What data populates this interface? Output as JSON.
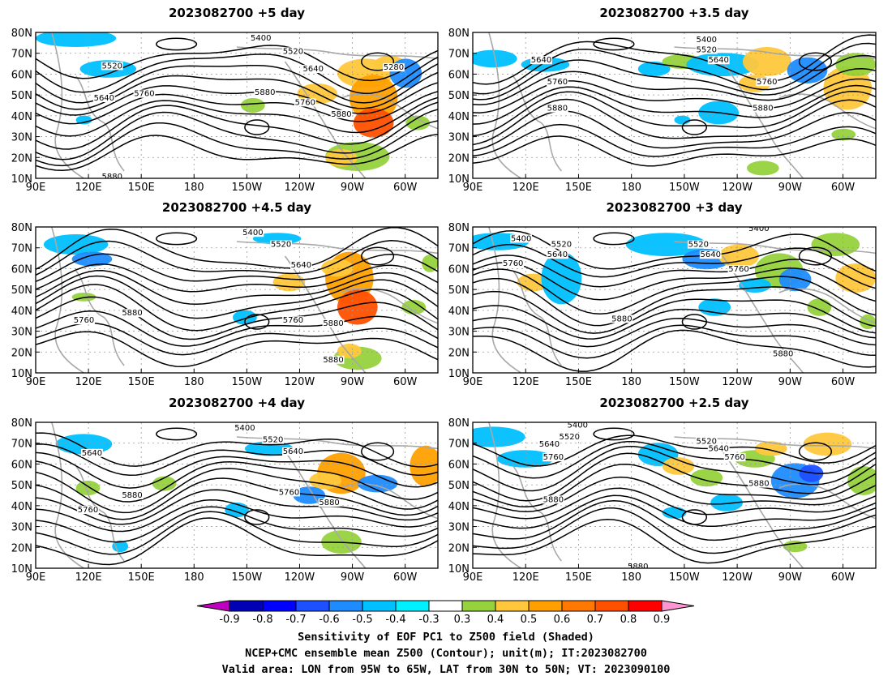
{
  "panels": [
    {
      "title": "2023082700  +5  day",
      "contour_labels": [
        "5400",
        "5520",
        "5520",
        "5640",
        "5640",
        "5760",
        "5760",
        "5880",
        "5880",
        "5280",
        "5880"
      ]
    },
    {
      "title": "2023082700  +3.5  day",
      "contour_labels": [
        "5400",
        "5520",
        "5640",
        "5640",
        "5760",
        "5760",
        "5880",
        "5880"
      ]
    },
    {
      "title": "2023082700  +4.5  day",
      "contour_labels": [
        "5400",
        "5520",
        "5640",
        "5760",
        "5880",
        "5760",
        "5880",
        "5880"
      ]
    },
    {
      "title": "2023082700  +3  day",
      "contour_labels": [
        "5400",
        "5400",
        "5520",
        "5520",
        "5640",
        "5640",
        "5760",
        "5760",
        "5880",
        "5880"
      ]
    },
    {
      "title": "2023082700  +4  day",
      "contour_labels": [
        "5400",
        "5520",
        "5640",
        "5640",
        "5760",
        "5880",
        "5760",
        "5880"
      ]
    },
    {
      "title": "2023082700  +2.5  day",
      "contour_labels": [
        "5400",
        "5520",
        "5520",
        "5640",
        "5640",
        "5760",
        "5760",
        "5880",
        "5880",
        "5880"
      ]
    }
  ],
  "axes": {
    "x_ticks": [
      "90E",
      "120E",
      "150E",
      "180",
      "150W",
      "120W",
      "90W",
      "60W"
    ],
    "y_ticks": [
      "80N",
      "70N",
      "60N",
      "50N",
      "40N",
      "30N",
      "20N",
      "10N"
    ]
  },
  "colorbar": {
    "labels": [
      "-0.9",
      "-0.8",
      "-0.7",
      "-0.6",
      "-0.5",
      "-0.4",
      "-0.3",
      "0.3",
      "0.4",
      "0.5",
      "0.6",
      "0.7",
      "0.8",
      "0.9"
    ],
    "colors": [
      "#c000c0",
      "#0000b4",
      "#0000ff",
      "#1e50ff",
      "#1e8cff",
      "#00c0ff",
      "#00f0ff",
      "#ffffff",
      "#96d23c",
      "#ffc83c",
      "#ffa000",
      "#ff7800",
      "#ff5000",
      "#ff0000",
      "#ff96d2"
    ]
  },
  "footer": {
    "line1": "Sensitivity of EOF PC1 to Z500 field (Shaded)",
    "line2": "NCEP+CMC ensemble mean Z500 (Contour); unit(m); IT:2023082700",
    "line3": "Valid area: LON from 95W to 65W, LAT from 30N to 50N; VT: 2023090100"
  }
}
